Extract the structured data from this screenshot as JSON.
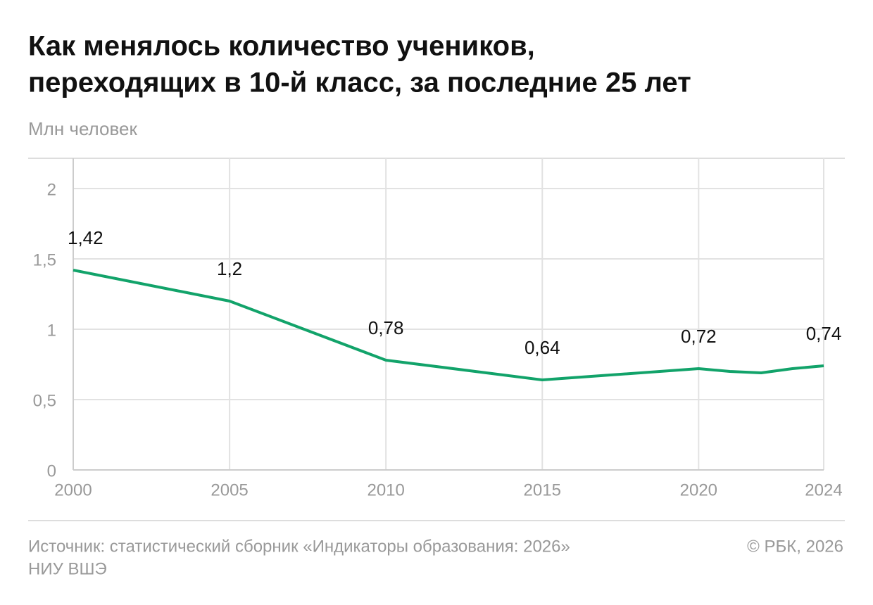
{
  "chart_data": {
    "type": "line",
    "title": [
      "Как менялось количество учеников,",
      "переходящих в 10-й класс, за последние 25 лет"
    ],
    "subtitle": "Млн человек",
    "source": [
      "Источник: статистический сборник «Индикаторы образования: 2026»",
      "НИУ ВШЭ"
    ],
    "credit": "© РБК, 2026",
    "x": [
      2000,
      2005,
      2010,
      2015,
      2020,
      2021,
      2022,
      2023,
      2024
    ],
    "series": [
      {
        "color": "#12a36a",
        "values": [
          1.42,
          1.2,
          0.78,
          0.64,
          0.72,
          0.7,
          0.69,
          0.72,
          0.74
        ],
        "value_labels": [
          "1,42",
          "1,2",
          "0,78",
          "0,64",
          "0,72",
          null,
          null,
          null,
          "0,74"
        ]
      }
    ],
    "xlim": [
      2000,
      2024
    ],
    "xticks": [
      2000,
      2005,
      2010,
      2015,
      2020,
      2024
    ],
    "ylim": [
      0,
      2.2
    ],
    "yticks": [
      0,
      {
        "value": 0.5,
        "label": "0,5"
      },
      1,
      {
        "value": 1.5,
        "label": "1,5"
      },
      2
    ],
    "grid": true
  }
}
